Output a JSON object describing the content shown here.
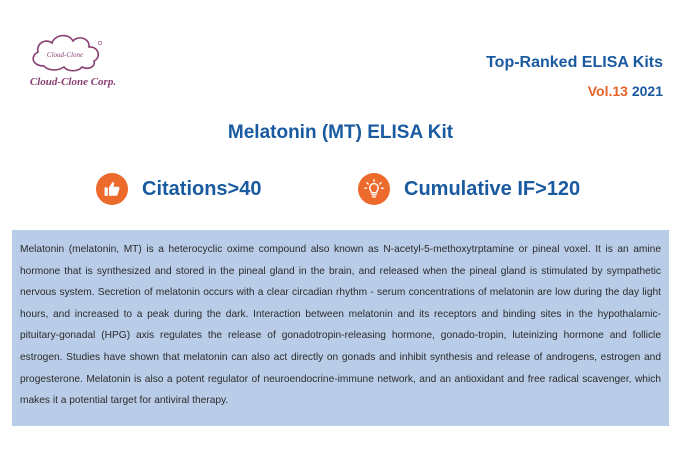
{
  "brand": {
    "logo_text": "Cloud-Clone Corp.",
    "logo_inner_text": "Cloud-Clone",
    "color": "#8a3f73"
  },
  "header": {
    "title": "Top-Ranked ELISA Kits",
    "vol_label": "Vol.13",
    "year": "2021"
  },
  "main": {
    "title": "Melatonin (MT) ELISA Kit"
  },
  "stats": [
    {
      "icon": "thumbs-up-icon",
      "label": "Citations>40"
    },
    {
      "icon": "lightbulb-icon",
      "label": "Cumulative IF>120"
    }
  ],
  "description": "Melatonin (melatonin, MT) is a heterocyclic oxime compound also known as N-acetyl-5-methoxytrptamine or pineal voxel. It is an amine hormone that is synthesized and stored in the pineal gland in the brain, and released when the pineal gland is stimulated by sympathetic nervous system. Secretion of melatonin occurs with a clear circadian rhythm - serum concentrations of melatonin are low during the day light hours, and increased to a peak during the dark. Interaction between melatonin and its receptors and binding sites in the hypothalamic-pituitary-gonadal (HPG) axis regulates the release of gonadotropin-releasing hormone, gonado-tropin, luteinizing hormone and follicle estrogen. Studies have shown that melatonin can also act directly on gonads and inhibit synthesis and release of androgens, estrogen and progesterone. Melatonin is also a potent regulator of neuroendocrine-immune network, and an antioxidant and free radical scavenger, which makes it a potential target for antiviral therapy.",
  "colors": {
    "accent_blue": "#1a5aa0",
    "accent_orange": "#ec6a2c",
    "vol_red": "#e5622b",
    "panel_bg": "#b9cde8"
  }
}
